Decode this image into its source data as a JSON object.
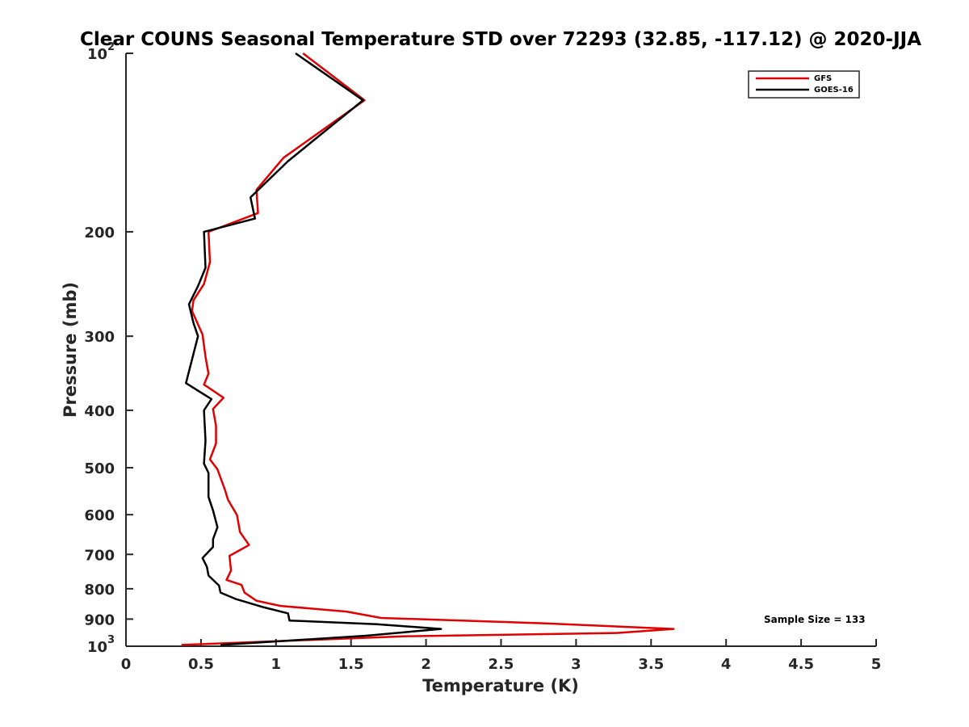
{
  "chart_data": {
    "type": "line",
    "title": "Clear COUNS Seasonal Temperature STD over 72293 (32.85, -117.12) @ 2020-JJA",
    "xlabel": "Temperature (K)",
    "ylabel": "Pressure (mb)",
    "xlim": [
      0,
      5
    ],
    "ylim": [
      100,
      1000
    ],
    "yscale": "log",
    "yreversed": true,
    "x_ticks": [
      {
        "value": 0,
        "label": "0"
      },
      {
        "value": 0.5,
        "label": "0.5"
      },
      {
        "value": 1,
        "label": "1"
      },
      {
        "value": 1.5,
        "label": "1.5"
      },
      {
        "value": 2,
        "label": "2"
      },
      {
        "value": 2.5,
        "label": "2.5"
      },
      {
        "value": 3,
        "label": "3"
      },
      {
        "value": 3.5,
        "label": "3.5"
      },
      {
        "value": 4,
        "label": "4"
      },
      {
        "value": 4.5,
        "label": "4.5"
      },
      {
        "value": 5,
        "label": "5"
      }
    ],
    "y_ticks": [
      {
        "value": 100,
        "label": "10",
        "sup": "2"
      },
      {
        "value": 200,
        "label": "200"
      },
      {
        "value": 300,
        "label": "300"
      },
      {
        "value": 400,
        "label": "400"
      },
      {
        "value": 500,
        "label": "500"
      },
      {
        "value": 600,
        "label": "600"
      },
      {
        "value": 700,
        "label": "700"
      },
      {
        "value": 800,
        "label": "800"
      },
      {
        "value": 900,
        "label": "900"
      },
      {
        "value": 1000,
        "label": "10",
        "sup": "3"
      }
    ],
    "legend_position": "top-right",
    "annotation": "Sample Size = 133",
    "series": [
      {
        "name": "GFS",
        "color": "#e00000",
        "points": [
          [
            1.18,
            100
          ],
          [
            1.59,
            120
          ],
          [
            1.05,
            150
          ],
          [
            0.87,
            170
          ],
          [
            0.88,
            186
          ],
          [
            0.55,
            200
          ],
          [
            0.56,
            225
          ],
          [
            0.52,
            245
          ],
          [
            0.45,
            261
          ],
          [
            0.44,
            272
          ],
          [
            0.51,
            298
          ],
          [
            0.53,
            325
          ],
          [
            0.55,
            347
          ],
          [
            0.52,
            362
          ],
          [
            0.65,
            381
          ],
          [
            0.58,
            398
          ],
          [
            0.6,
            425
          ],
          [
            0.6,
            455
          ],
          [
            0.56,
            484
          ],
          [
            0.61,
            503
          ],
          [
            0.66,
            545
          ],
          [
            0.68,
            566
          ],
          [
            0.74,
            601
          ],
          [
            0.76,
            642
          ],
          [
            0.82,
            675
          ],
          [
            0.69,
            704
          ],
          [
            0.7,
            745
          ],
          [
            0.67,
            773
          ],
          [
            0.77,
            788
          ],
          [
            0.79,
            812
          ],
          [
            0.87,
            838
          ],
          [
            1.03,
            855
          ],
          [
            1.47,
            874
          ],
          [
            1.7,
            896
          ],
          [
            2.8,
            915
          ],
          [
            3.65,
            935
          ],
          [
            3.27,
            950
          ],
          [
            1.85,
            962
          ],
          [
            0.37,
            995
          ]
        ]
      },
      {
        "name": "GOES-16",
        "color": "#000000",
        "points": [
          [
            1.13,
            100
          ],
          [
            1.58,
            120
          ],
          [
            1.08,
            152
          ],
          [
            0.83,
            175
          ],
          [
            0.86,
            190
          ],
          [
            0.52,
            200
          ],
          [
            0.53,
            230
          ],
          [
            0.48,
            247
          ],
          [
            0.42,
            265
          ],
          [
            0.45,
            285
          ],
          [
            0.48,
            300
          ],
          [
            0.4,
            360
          ],
          [
            0.57,
            383
          ],
          [
            0.52,
            400
          ],
          [
            0.53,
            450
          ],
          [
            0.52,
            492
          ],
          [
            0.55,
            510
          ],
          [
            0.55,
            560
          ],
          [
            0.58,
            590
          ],
          [
            0.61,
            630
          ],
          [
            0.58,
            660
          ],
          [
            0.58,
            680
          ],
          [
            0.51,
            710
          ],
          [
            0.54,
            735
          ],
          [
            0.55,
            760
          ],
          [
            0.62,
            790
          ],
          [
            0.63,
            812
          ],
          [
            0.73,
            832
          ],
          [
            0.92,
            860
          ],
          [
            1.08,
            880
          ],
          [
            1.09,
            905
          ],
          [
            1.67,
            918
          ],
          [
            2.1,
            935
          ],
          [
            1.6,
            960
          ],
          [
            0.63,
            995
          ]
        ]
      }
    ]
  }
}
